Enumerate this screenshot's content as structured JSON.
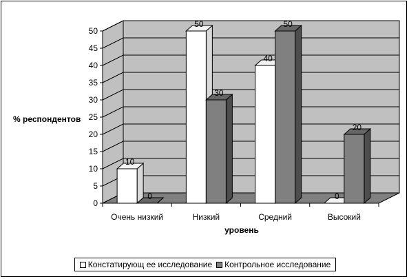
{
  "chart_data": {
    "type": "bar",
    "categories": [
      "Очень низкий",
      "Низкий",
      "Средний",
      "Высокий"
    ],
    "series": [
      {
        "name": "Констатирующ ее исследование",
        "values": [
          10,
          50,
          40,
          0
        ],
        "color": "#ffffff"
      },
      {
        "name": "Контрольное исследование",
        "values": [
          0,
          30,
          50,
          20
        ],
        "color": "#808080"
      }
    ],
    "xlabel": "уровень",
    "ylabel": "% респондентов",
    "ylim": [
      0,
      50
    ],
    "yticks": [
      "0",
      "5",
      "10",
      "15",
      "20",
      "25",
      "30",
      "35",
      "40",
      "45",
      "50"
    ],
    "data_labels": true,
    "grid": true,
    "three_d": true,
    "legend_position": "bottom",
    "colors": {
      "wall": "#c0c0c0",
      "floor": "#808080",
      "grid": "#000000"
    }
  }
}
